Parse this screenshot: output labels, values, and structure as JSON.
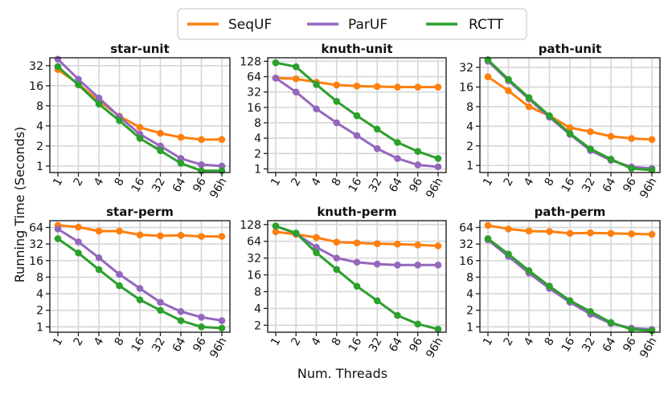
{
  "figure": {
    "ylabel": "Running Time (Seconds)",
    "xlabel": "Num. Threads"
  },
  "legend": [
    {
      "name": "SeqUF",
      "color": "#ff7f0e"
    },
    {
      "name": "ParUF",
      "color": "#9467bd"
    },
    {
      "name": "RCTT",
      "color": "#2ca02c"
    }
  ],
  "chart_data": [
    {
      "type": "line",
      "title": "star-unit",
      "yscale": "log2",
      "ylim": [
        0.8,
        42
      ],
      "categories": [
        "1",
        "2",
        "4",
        "8",
        "16",
        "32",
        "64",
        "96",
        "96h"
      ],
      "yticks": [
        1,
        2,
        4,
        8,
        16,
        32
      ],
      "yticklabels": [
        "1",
        "2",
        "4",
        "8",
        "16",
        "32"
      ],
      "series": [
        {
          "name": "SeqUF",
          "color": "#ff7f0e",
          "values": [
            28,
            17,
            9.5,
            5.6,
            3.8,
            3.1,
            2.7,
            2.5,
            2.5
          ]
        },
        {
          "name": "ParUF",
          "color": "#9467bd",
          "values": [
            40,
            20,
            10.5,
            5.5,
            3.0,
            2.0,
            1.3,
            1.05,
            1.0
          ]
        },
        {
          "name": "RCTT",
          "color": "#2ca02c",
          "values": [
            31,
            16.5,
            8.5,
            4.8,
            2.6,
            1.7,
            1.1,
            0.85,
            0.85
          ]
        }
      ]
    },
    {
      "type": "line",
      "title": "knuth-unit",
      "yscale": "log2",
      "ylim": [
        0.85,
        150
      ],
      "categories": [
        "1",
        "2",
        "4",
        "8",
        "16",
        "32",
        "64",
        "96",
        "96h"
      ],
      "yticks": [
        1,
        2,
        4,
        8,
        16,
        32,
        64,
        128
      ],
      "yticklabels": [
        "1",
        "2",
        "4",
        "8",
        "16",
        "32",
        "64",
        "128"
      ],
      "series": [
        {
          "name": "SeqUF",
          "color": "#ff7f0e",
          "values": [
            60,
            58,
            50,
            44,
            42,
            41,
            40,
            40,
            40
          ]
        },
        {
          "name": "ParUF",
          "color": "#9467bd",
          "values": [
            60,
            32,
            15,
            8,
            4.5,
            2.5,
            1.6,
            1.2,
            1.1
          ]
        },
        {
          "name": "RCTT",
          "color": "#2ca02c",
          "values": [
            120,
            100,
            45,
            21,
            11,
            6,
            3.3,
            2.2,
            1.6
          ]
        }
      ]
    },
    {
      "type": "line",
      "title": "path-unit",
      "yscale": "log2",
      "ylim": [
        0.78,
        45
      ],
      "categories": [
        "1",
        "2",
        "4",
        "8",
        "16",
        "32",
        "64",
        "96",
        "96h"
      ],
      "yticks": [
        1,
        2,
        4,
        8,
        16,
        32
      ],
      "yticklabels": [
        "1",
        "2",
        "4",
        "8",
        "16",
        "32"
      ],
      "series": [
        {
          "name": "SeqUF",
          "color": "#ff7f0e",
          "values": [
            23,
            14,
            8,
            5.8,
            3.8,
            3.3,
            2.8,
            2.6,
            2.5
          ]
        },
        {
          "name": "ParUF",
          "color": "#9467bd",
          "values": [
            40,
            20,
            10.5,
            5.5,
            3.0,
            1.7,
            1.2,
            0.95,
            0.9
          ]
        },
        {
          "name": "RCTT",
          "color": "#2ca02c",
          "values": [
            42,
            21,
            11,
            5.8,
            3.1,
            1.8,
            1.25,
            0.9,
            0.85
          ]
        }
      ]
    },
    {
      "type": "line",
      "title": "star-perm",
      "yscale": "log2",
      "ylim": [
        0.8,
        85
      ],
      "categories": [
        "1",
        "2",
        "4",
        "8",
        "16",
        "32",
        "64",
        "96",
        "96h"
      ],
      "yticks": [
        1,
        2,
        4,
        8,
        16,
        32,
        64
      ],
      "yticklabels": [
        "1",
        "2",
        "4",
        "8",
        "16",
        "32",
        "64"
      ],
      "series": [
        {
          "name": "SeqUF",
          "color": "#ff7f0e",
          "values": [
            70,
            65,
            55,
            55,
            47,
            45,
            46,
            44,
            44
          ]
        },
        {
          "name": "ParUF",
          "color": "#9467bd",
          "values": [
            60,
            35,
            18,
            9,
            5,
            2.8,
            1.9,
            1.5,
            1.3
          ]
        },
        {
          "name": "RCTT",
          "color": "#2ca02c",
          "values": [
            40,
            22,
            11,
            5.6,
            3.1,
            2.0,
            1.3,
            1.0,
            0.95
          ]
        }
      ]
    },
    {
      "type": "line",
      "title": "knuth-perm",
      "yscale": "log2",
      "ylim": [
        1.5,
        150
      ],
      "categories": [
        "1",
        "2",
        "4",
        "8",
        "16",
        "32",
        "64",
        "96",
        "96h"
      ],
      "yticks": [
        2,
        4,
        8,
        16,
        32,
        64,
        128
      ],
      "yticklabels": [
        "2",
        "4",
        "8",
        "16",
        "32",
        "64",
        "128"
      ],
      "series": [
        {
          "name": "SeqUF",
          "color": "#ff7f0e",
          "values": [
            95,
            85,
            75,
            62,
            60,
            58,
            57,
            55,
            53
          ]
        },
        {
          "name": "ParUF",
          "color": "#9467bd",
          "values": [
            120,
            88,
            50,
            32,
            27,
            25,
            24,
            24,
            24
          ]
        },
        {
          "name": "RCTT",
          "color": "#2ca02c",
          "values": [
            120,
            90,
            40,
            20,
            10,
            5.5,
            3.0,
            2.1,
            1.7
          ]
        }
      ]
    },
    {
      "type": "line",
      "title": "path-perm",
      "yscale": "log2",
      "ylim": [
        0.8,
        85
      ],
      "categories": [
        "1",
        "2",
        "4",
        "8",
        "16",
        "32",
        "64",
        "96",
        "96h"
      ],
      "yticks": [
        1,
        2,
        4,
        8,
        16,
        32,
        64
      ],
      "yticklabels": [
        "1",
        "2",
        "4",
        "8",
        "16",
        "32",
        "64"
      ],
      "series": [
        {
          "name": "SeqUF",
          "color": "#ff7f0e",
          "values": [
            70,
            60,
            55,
            54,
            50,
            51,
            50,
            49,
            48
          ]
        },
        {
          "name": "ParUF",
          "color": "#9467bd",
          "values": [
            38,
            19,
            9.5,
            5.0,
            2.8,
            1.7,
            1.15,
            0.95,
            0.9
          ]
        },
        {
          "name": "RCTT",
          "color": "#2ca02c",
          "values": [
            40,
            21,
            10.5,
            5.5,
            3.0,
            1.9,
            1.2,
            0.9,
            0.85
          ]
        }
      ]
    }
  ]
}
